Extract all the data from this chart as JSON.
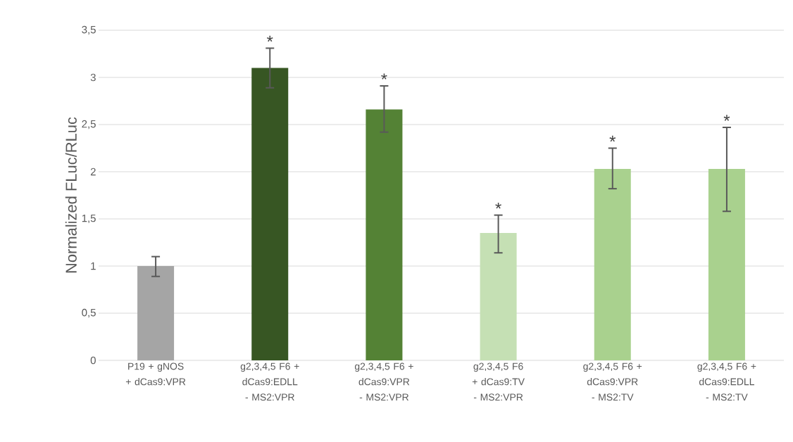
{
  "chart_data": {
    "type": "bar",
    "ylabel": "Normalized FLuc/RLuc",
    "categories": [
      "P19 + gNOS + dCas9:VPR",
      "g2,3,4,5 F6 + dCas9:EDLL - MS2:VPR",
      "g2,3,4,5 F6 + dCas9:VPR - MS2:VPR",
      "g2,3,4,5 F6 + dCas9:TV - MS2:VPR",
      "g2,3,4,5 F6 + dCas9:VPR - MS2:TV",
      "g2,3,4,5 F6 + dCas9:EDLL - MS2:TV"
    ],
    "values": [
      1.0,
      3.1,
      2.66,
      1.35,
      2.03,
      2.03
    ],
    "colors": [
      "#a5a5a5",
      "#375623",
      "#548235",
      "#c5e0b4",
      "#a9d18e",
      "#a9d18e"
    ],
    "errors": [
      [
        0.89,
        1.1
      ],
      [
        2.89,
        3.31
      ],
      [
        2.42,
        2.91
      ],
      [
        1.14,
        1.54
      ],
      [
        1.82,
        2.25
      ],
      [
        1.58,
        2.47
      ]
    ],
    "annotations": [
      {
        "text": "*",
        "x": "g2,3,4,5 F6 + dCas9:EDLL - MS2:VPR",
        "y": 3.31
      },
      {
        "text": "*",
        "x": "g2,3,4,5 F6 + dCas9:VPR - MS2:VPR",
        "y": 2.91
      },
      {
        "text": "*",
        "x": "g2,3,4,5 F6 + dCas9:TV - MS2:VPR",
        "y": 1.54
      },
      {
        "text": "*",
        "x": "g2,3,4,5 F6 + dCas9:VPR - MS2:TV",
        "y": 2.25
      },
      {
        "text": "*",
        "x": "g2,3,4,5 F6 + dCas9:EDLL - MS2:TV",
        "y": 2.47
      }
    ],
    "ylim": [
      0,
      3.5
    ],
    "yticks": [
      {
        "value": 0,
        "label": "0"
      },
      {
        "value": 0.5,
        "label": "0,5"
      },
      {
        "value": 1,
        "label": "1"
      },
      {
        "value": 1.5,
        "label": "1,5"
      },
      {
        "value": 2,
        "label": "2"
      },
      {
        "value": 2.5,
        "label": "2,5"
      },
      {
        "value": 3,
        "label": "3"
      },
      {
        "value": 3.5,
        "label": "3,5"
      }
    ],
    "grid": "y"
  }
}
